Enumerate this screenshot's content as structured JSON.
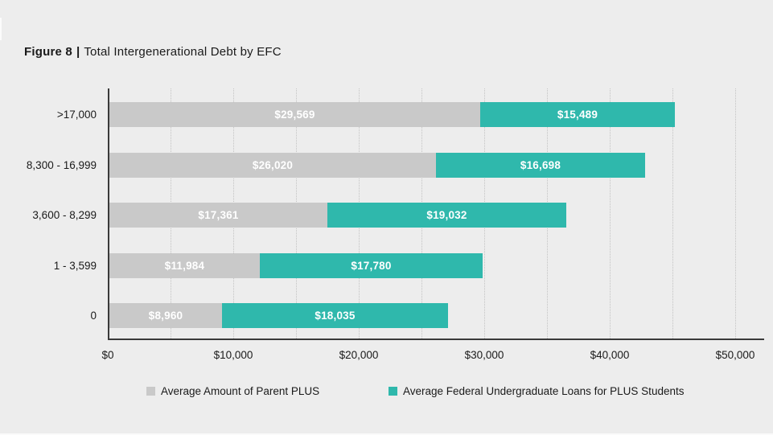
{
  "title": {
    "figure_label": "Figure 8",
    "separator": "|",
    "text": "Total Intergenerational Debt by EFC"
  },
  "chart_data": {
    "type": "bar",
    "orientation": "horizontal",
    "stacked": true,
    "title": "Figure 8 | Total Intergenerational Debt by EFC",
    "categories": [
      ">17,000",
      "8,300 - 16,999",
      "3,600 - 8,299",
      "1 - 3,599",
      "0"
    ],
    "series": [
      {
        "name": "Average Amount of Parent PLUS",
        "color": "#C9C9C9",
        "values": [
          29569,
          26020,
          17361,
          11984,
          8960
        ],
        "labels": [
          "$29,569",
          "$26,020",
          "$17,361",
          "$11,984",
          "$8,960"
        ]
      },
      {
        "name": "Average Federal Undergraduate Loans for PLUS Students",
        "color": "#2FB8AC",
        "values": [
          15489,
          16698,
          19032,
          17780,
          18035
        ],
        "labels": [
          "$15,489",
          "$16,698",
          "$19,032",
          "$17,780",
          "$18,035"
        ]
      }
    ],
    "x_axis": {
      "ticks": [
        "$0",
        "$10,000",
        "$20,000",
        "$30,000",
        "$40,000",
        "$50,000"
      ],
      "tick_values": [
        0,
        10000,
        20000,
        30000,
        40000,
        50000
      ],
      "xlim": [
        0,
        50000
      ],
      "gridline_interval": 5000,
      "grid_style": "dotted"
    },
    "legend_position": "bottom"
  },
  "colors": {
    "background": "#EDEDED",
    "bar_gray": "#C9C9C9",
    "bar_teal": "#2FB8AC",
    "axis": "#3A3A3A",
    "gridline": "#C3C3C3",
    "text": "#1A1A1A",
    "bar_label_text": "#FFFFFF"
  }
}
